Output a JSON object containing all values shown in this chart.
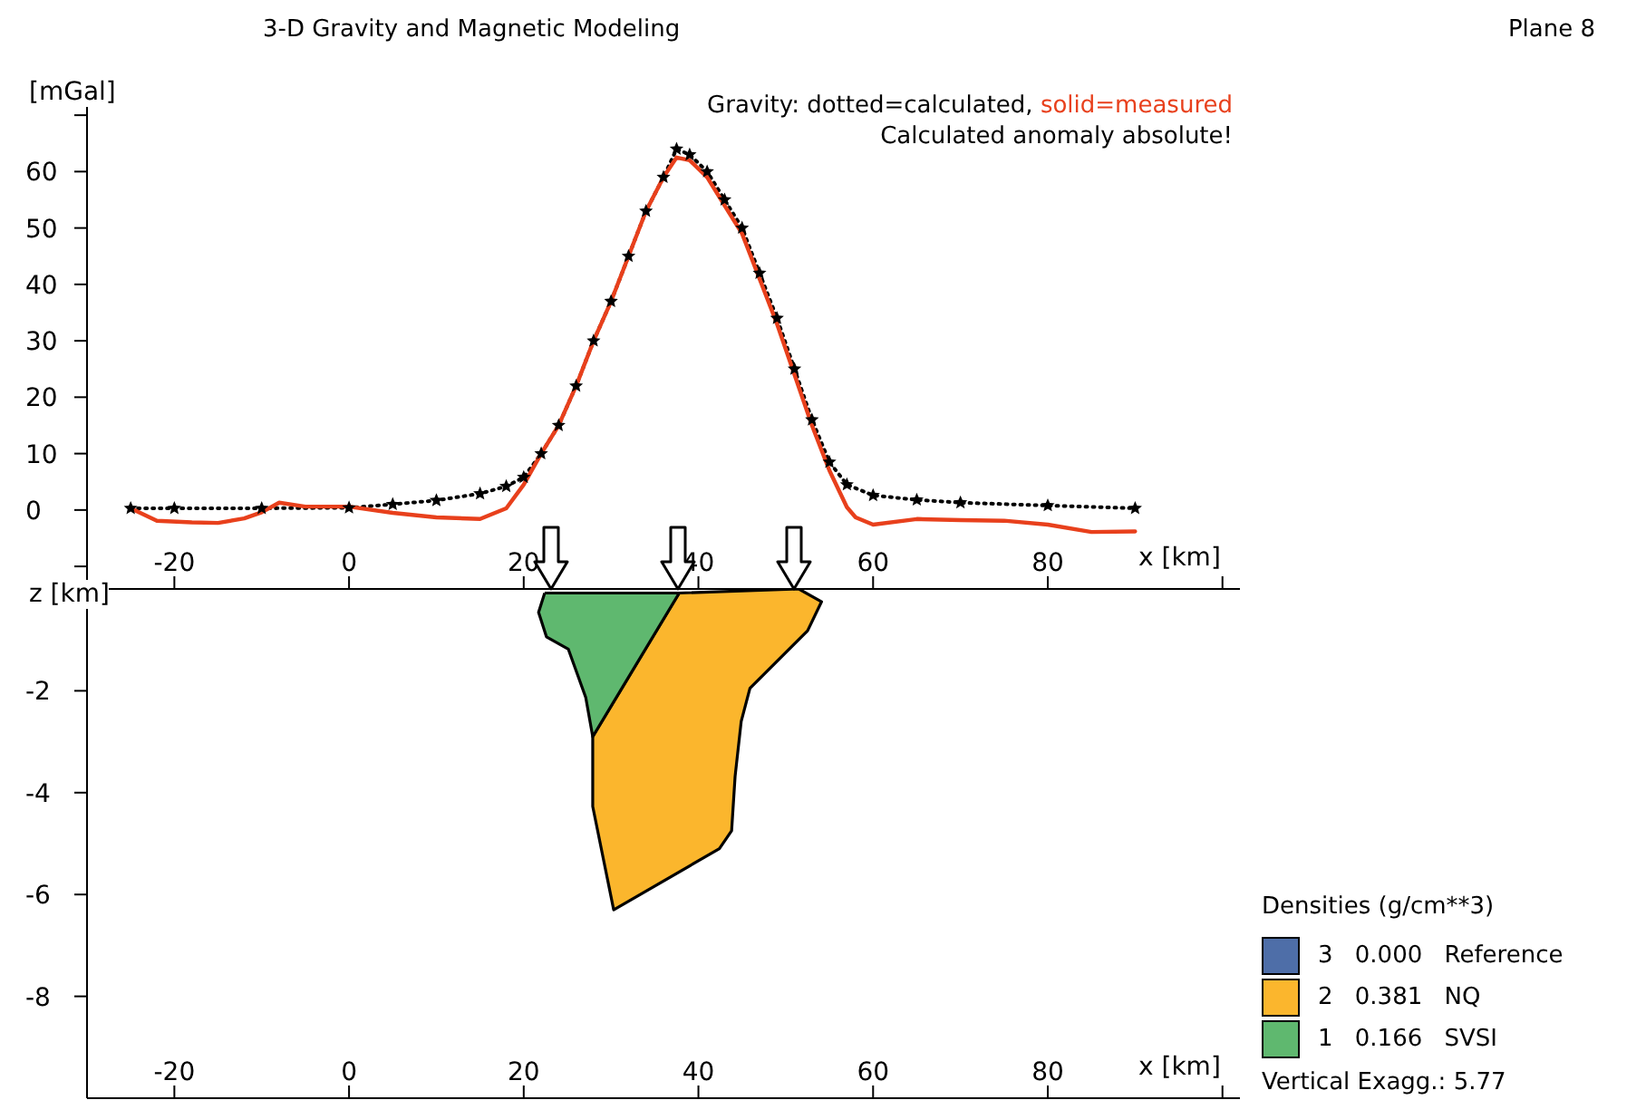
{
  "chart_data": [
    {
      "type": "line",
      "title": "3-D Gravity and Magnetic Modeling",
      "xlabel": "x [km]",
      "ylabel": "[mGal]",
      "annotations": [
        "Gravity: dotted=calculated,",
        "solid=measured",
        "Calculated anomaly absolute!",
        "Plane 8"
      ],
      "xlim": [
        -30,
        102
      ],
      "xticks": [
        -20,
        0,
        20,
        40,
        60,
        80,
        {
          "value": 100,
          "label": null
        }
      ],
      "ylim": [
        -14,
        75
      ],
      "yticks": [
        {
          "value": -10,
          "label": null
        },
        0,
        10,
        20,
        30,
        40,
        50,
        60,
        {
          "value": 70,
          "label": null
        }
      ],
      "series": [
        {
          "color": "#000000",
          "line_style": "dotted",
          "marker": "star",
          "x": [
            -25,
            -20,
            -10,
            0,
            5,
            10,
            15,
            18,
            20,
            22,
            24,
            26,
            28,
            30,
            32,
            34,
            36,
            37.5,
            39,
            41,
            43,
            45,
            47,
            49,
            51,
            53,
            55,
            57,
            60,
            65,
            70,
            80,
            90
          ],
          "values": [
            0.3,
            0.3,
            0.3,
            0.4,
            1,
            1.7,
            2.9,
            4.2,
            5.8,
            10,
            15,
            22,
            30,
            37,
            45,
            53,
            59,
            64,
            63,
            60,
            55,
            50,
            42,
            34,
            25,
            16,
            8.5,
            4.5,
            2.6,
            1.8,
            1.3,
            0.8,
            0.3
          ]
        },
        {
          "color": "#e8401c",
          "line_style": "solid",
          "marker": "none",
          "x": [
            -25,
            -22,
            -18,
            -15,
            -12,
            -10,
            -8,
            -5,
            0,
            5,
            10,
            15,
            18,
            20,
            22,
            24,
            26,
            28,
            30,
            32,
            34,
            36,
            37.5,
            39,
            41,
            43,
            45,
            47,
            49,
            51,
            53,
            55,
            57,
            58,
            60,
            65,
            70,
            75,
            80,
            85,
            90
          ],
          "values": [
            0.3,
            -1.9,
            -2.2,
            -2.3,
            -1.5,
            -0.4,
            1.3,
            0.6,
            0.6,
            -0.5,
            -1.3,
            -1.6,
            0.3,
            4.5,
            10,
            15,
            22,
            30,
            37,
            45,
            53,
            59,
            62.5,
            62,
            59,
            54,
            49,
            41,
            33,
            24,
            15,
            7,
            0.5,
            -1.3,
            -2.6,
            -1.6,
            -1.8,
            -1.9,
            -2.6,
            -3.9,
            -3.8
          ]
        }
      ]
    },
    {
      "type": "area",
      "xlabel": "x [km]",
      "ylabel": "z [km]",
      "legend_title": "Densities (g/cm**3)",
      "legend": "bottom right",
      "annotations": [
        "Vertical Exagg.: 5.77"
      ],
      "xlim": [
        -30,
        102
      ],
      "xticks": [
        -20,
        0,
        20,
        40,
        60,
        80,
        {
          "value": 100,
          "label": null
        }
      ],
      "ylim": [
        -10,
        0
      ],
      "yticks": [
        -8,
        -6,
        -4,
        -2,
        {
          "value": 0,
          "label": null
        }
      ],
      "series": [
        {
          "name": "3 0.000 Reference",
          "color": "#4e6ea8"
        },
        {
          "name": "2 0.381 NQ",
          "color": "#fbb62d",
          "x": [
            37.8,
            51.5,
            54.1,
            52.5,
            45.9,
            44.9,
            44.2,
            43.8,
            42.4,
            30.3,
            27.9,
            27.9
          ],
          "values": [
            -0.08,
            0,
            -0.25,
            -0.82,
            -1.95,
            -2.6,
            -3.68,
            -4.75,
            -5.1,
            -6.3,
            -4.27,
            -2.9
          ]
        },
        {
          "name": "1 0.166 SVSI",
          "color": "#5fb86f",
          "x": [
            22.4,
            37.8,
            27.9,
            27.1,
            25.1,
            22.6,
            21.7
          ],
          "values": [
            -0.08,
            -0.08,
            -2.9,
            -2.13,
            -1.18,
            -0.94,
            -0.46
          ]
        }
      ]
    }
  ]
}
